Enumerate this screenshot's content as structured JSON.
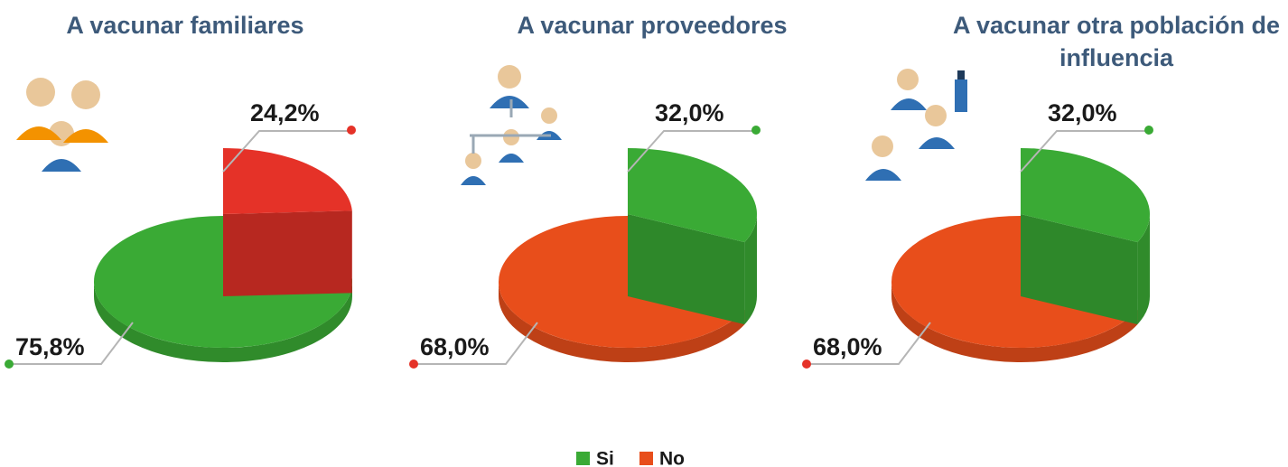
{
  "chart_data": [
    {
      "type": "pie",
      "title": "A vacunar familiares",
      "categories": [
        "No",
        "Si"
      ],
      "values": [
        24.2,
        75.8
      ],
      "value_labels": [
        "24,2%",
        "75,8%"
      ],
      "colors": [
        "#e53228",
        "#3aaa35"
      ]
    },
    {
      "type": "pie",
      "title": "A vacunar proveedores",
      "categories": [
        "Si",
        "No"
      ],
      "values": [
        32,
        68
      ],
      "value_labels": [
        "32,0%",
        "68,0%"
      ],
      "colors": [
        "#3aaa35",
        "#e84e1b"
      ]
    },
    {
      "type": "pie",
      "title": "A vacunar otra población de influencia",
      "categories": [
        "Si",
        "No"
      ],
      "values": [
        32,
        68
      ],
      "value_labels": [
        "32,0%",
        "68,0%"
      ],
      "colors": [
        "#3aaa35",
        "#e84e1b"
      ]
    }
  ],
  "legend": {
    "labels": [
      "Si",
      "No"
    ],
    "colors": [
      "#3aaa35",
      "#e84e1b"
    ]
  }
}
